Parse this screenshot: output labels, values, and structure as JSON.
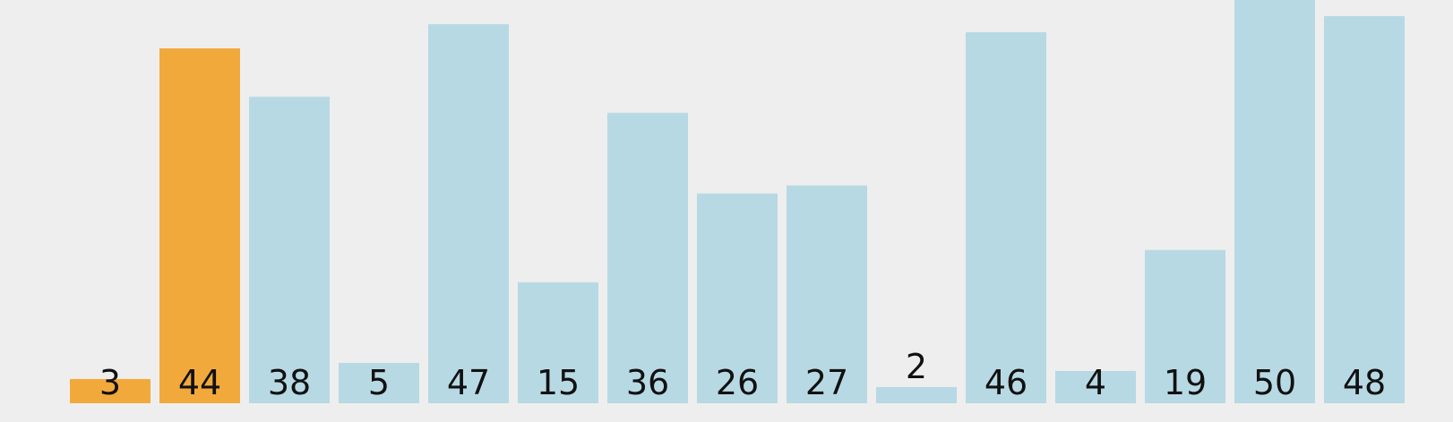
{
  "chart_data": {
    "type": "bar",
    "categories": [
      "3",
      "44",
      "38",
      "5",
      "47",
      "15",
      "36",
      "26",
      "27",
      "2",
      "46",
      "4",
      "19",
      "50",
      "48"
    ],
    "values": [
      3,
      44,
      38,
      5,
      47,
      15,
      36,
      26,
      27,
      2,
      46,
      4,
      19,
      50,
      48
    ],
    "highlighted_indices": [
      0,
      1
    ],
    "ylim": [
      0,
      50
    ],
    "title": "",
    "xlabel": "",
    "ylabel": "",
    "grid": false,
    "legend": "none",
    "colors": {
      "bar": "#b7d9e4",
      "highlight": "#f2a93b",
      "background": "#eeeeee",
      "label": "#111111"
    }
  }
}
